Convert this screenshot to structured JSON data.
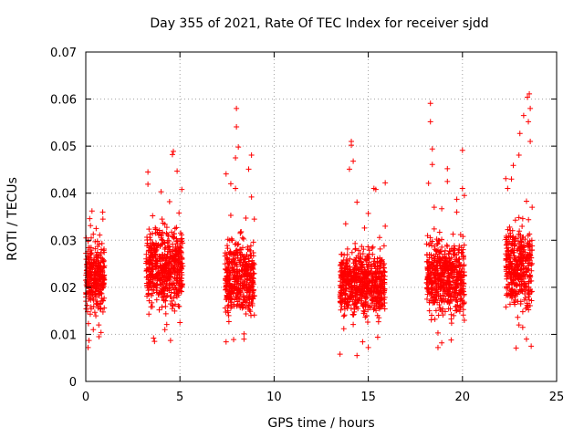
{
  "chart_data": {
    "type": "scatter",
    "title": "Day 355 of 2021, Rate Of TEC Index for receiver sjdd",
    "xlabel": "GPS time / hours",
    "ylabel": "ROTI / TECUs",
    "xlim": [
      0,
      25
    ],
    "ylim": [
      0,
      0.07
    ],
    "xticks": [
      0,
      5,
      10,
      15,
      20,
      25
    ],
    "yticks": [
      0,
      0.01,
      0.02,
      0.03,
      0.04,
      0.05,
      0.06,
      0.07
    ],
    "xtick_labels": [
      "0",
      "5",
      "10",
      "15",
      "20",
      "25"
    ],
    "ytick_labels": [
      "0",
      "0.01",
      "0.02",
      "0.03",
      "0.04",
      "0.05",
      "0.06",
      "0.07"
    ],
    "grid": true,
    "marker": "+",
    "color": "#ff0000",
    "series": [
      {
        "name": "ROTI",
        "points": [
          [
            0.0,
            0.0215
          ],
          [
            0.02,
            0.0305
          ],
          [
            0.05,
            0.0187
          ],
          [
            0.07,
            0.0162
          ],
          [
            0.1,
            0.0254
          ],
          [
            0.12,
            0.0298
          ],
          [
            0.14,
            0.0123
          ],
          [
            0.17,
            0.0087
          ],
          [
            0.19,
            0.0213
          ],
          [
            0.21,
            0.0346
          ],
          [
            0.24,
            0.0272
          ],
          [
            0.26,
            0.0191
          ],
          [
            0.29,
            0.0305
          ],
          [
            0.31,
            0.0228
          ],
          [
            0.33,
            0.0362
          ],
          [
            0.36,
            0.0241
          ],
          [
            0.38,
            0.0176
          ],
          [
            0.4,
            0.0313
          ],
          [
            0.43,
            0.0205
          ],
          [
            0.45,
            0.0259
          ],
          [
            0.48,
            0.0147
          ],
          [
            0.5,
            0.0282
          ],
          [
            0.52,
            0.0192
          ],
          [
            0.55,
            0.0325
          ],
          [
            0.57,
            0.0239
          ],
          [
            0.6,
            0.0164
          ],
          [
            0.62,
            0.0298
          ],
          [
            0.64,
            0.0252
          ],
          [
            0.67,
            0.0187
          ],
          [
            0.69,
            0.012
          ],
          [
            0.71,
            0.0268
          ],
          [
            0.74,
            0.0311
          ],
          [
            0.76,
            0.0204
          ],
          [
            0.79,
            0.0237
          ],
          [
            0.81,
            0.0104
          ],
          [
            0.83,
            0.0171
          ],
          [
            0.86,
            0.0293
          ],
          [
            0.88,
            0.0235
          ],
          [
            0.91,
            0.0345
          ],
          [
            0.93,
            0.0219
          ],
          [
            0.95,
            0.0278
          ],
          [
            0.98,
            0.0156
          ],
          [
            0.12,
            0.0072
          ],
          [
            0.25,
            0.0331
          ],
          [
            0.4,
            0.011
          ],
          [
            0.7,
            0.0095
          ],
          [
            0.9,
            0.036
          ],
          [
            3.2,
            0.0251
          ],
          [
            3.25,
            0.0181
          ],
          [
            3.3,
            0.0419
          ],
          [
            3.35,
            0.0143
          ],
          [
            3.4,
            0.0306
          ],
          [
            3.45,
            0.0227
          ],
          [
            3.5,
            0.0167
          ],
          [
            3.55,
            0.0352
          ],
          [
            3.6,
            0.0205
          ],
          [
            3.65,
            0.0085
          ],
          [
            3.7,
            0.0268
          ],
          [
            3.75,
            0.0194
          ],
          [
            3.8,
            0.0317
          ],
          [
            3.85,
            0.0228
          ],
          [
            3.9,
            0.0152
          ],
          [
            3.95,
            0.0287
          ],
          [
            4.0,
            0.0403
          ],
          [
            4.05,
            0.021
          ],
          [
            4.1,
            0.0262
          ],
          [
            4.15,
            0.0173
          ],
          [
            4.2,
            0.0334
          ],
          [
            4.25,
            0.0246
          ],
          [
            4.3,
            0.0121
          ],
          [
            4.35,
            0.0299
          ],
          [
            4.4,
            0.0218
          ],
          [
            4.45,
            0.0382
          ],
          [
            4.5,
            0.0276
          ],
          [
            4.55,
            0.0199
          ],
          [
            4.6,
            0.0482
          ],
          [
            4.65,
            0.0236
          ],
          [
            4.7,
            0.0314
          ],
          [
            4.75,
            0.0164
          ],
          [
            4.8,
            0.0271
          ],
          [
            4.85,
            0.0447
          ],
          [
            4.9,
            0.0232
          ],
          [
            4.95,
            0.0358
          ],
          [
            5.0,
            0.0193
          ],
          [
            5.05,
            0.0301
          ],
          [
            5.1,
            0.0408
          ],
          [
            5.15,
            0.0245
          ],
          [
            3.3,
            0.0445
          ],
          [
            3.6,
            0.0092
          ],
          [
            4.2,
            0.011
          ],
          [
            4.65,
            0.0489
          ],
          [
            5.0,
            0.0125
          ],
          [
            4.05,
            0.0345
          ],
          [
            4.5,
            0.0087
          ],
          [
            7.4,
            0.025
          ],
          [
            7.45,
            0.0441
          ],
          [
            7.5,
            0.0181
          ],
          [
            7.55,
            0.0302
          ],
          [
            7.6,
            0.0127
          ],
          [
            7.65,
            0.0226
          ],
          [
            7.7,
            0.0353
          ],
          [
            7.75,
            0.0198
          ],
          [
            7.8,
            0.0269
          ],
          [
            7.85,
            0.0089
          ],
          [
            7.9,
            0.0216
          ],
          [
            7.95,
            0.041
          ],
          [
            8.0,
            0.0541
          ],
          [
            8.05,
            0.0184
          ],
          [
            8.1,
            0.0292
          ],
          [
            8.15,
            0.0234
          ],
          [
            8.2,
            0.0157
          ],
          [
            8.25,
            0.0318
          ],
          [
            8.3,
            0.0205
          ],
          [
            8.35,
            0.0264
          ],
          [
            8.4,
            0.0101
          ],
          [
            8.45,
            0.0228
          ],
          [
            8.5,
            0.0347
          ],
          [
            8.55,
            0.0192
          ],
          [
            8.6,
            0.0281
          ],
          [
            8.65,
            0.0451
          ],
          [
            8.7,
            0.0174
          ],
          [
            8.75,
            0.0237
          ],
          [
            8.8,
            0.0392
          ],
          [
            8.85,
            0.0211
          ],
          [
            8.9,
            0.0296
          ],
          [
            8.95,
            0.0141
          ],
          [
            8.0,
            0.058
          ],
          [
            7.95,
            0.0475
          ],
          [
            8.1,
            0.0498
          ],
          [
            7.45,
            0.0084
          ],
          [
            8.4,
            0.009
          ],
          [
            8.8,
            0.0481
          ],
          [
            8.95,
            0.0345
          ],
          [
            7.7,
            0.042
          ],
          [
            13.5,
            0.0058
          ],
          [
            13.6,
            0.027
          ],
          [
            13.7,
            0.021
          ],
          [
            13.8,
            0.0335
          ],
          [
            13.9,
            0.0176
          ],
          [
            14.0,
            0.0451
          ],
          [
            14.05,
            0.0238
          ],
          [
            14.1,
            0.0502
          ],
          [
            14.2,
            0.0121
          ],
          [
            14.3,
            0.0293
          ],
          [
            14.4,
            0.0381
          ],
          [
            14.5,
            0.0202
          ],
          [
            14.6,
            0.0264
          ],
          [
            14.7,
            0.0084
          ],
          [
            14.8,
            0.0326
          ],
          [
            14.9,
            0.0219
          ],
          [
            15.0,
            0.0357
          ],
          [
            15.1,
            0.0158
          ],
          [
            15.2,
            0.0283
          ],
          [
            15.3,
            0.041
          ],
          [
            15.4,
            0.0233
          ],
          [
            15.5,
            0.0094
          ],
          [
            15.6,
            0.0306
          ],
          [
            15.7,
            0.0187
          ],
          [
            15.8,
            0.0247
          ],
          [
            15.9,
            0.0422
          ],
          [
            14.1,
            0.051
          ],
          [
            14.2,
            0.0468
          ],
          [
            15.4,
            0.0408
          ],
          [
            15.0,
            0.0072
          ],
          [
            14.4,
            0.0055
          ],
          [
            15.9,
            0.033
          ],
          [
            13.7,
            0.0112
          ],
          [
            14.8,
            0.0148
          ],
          [
            18.1,
            0.0292
          ],
          [
            18.15,
            0.0196
          ],
          [
            18.2,
            0.0421
          ],
          [
            18.25,
            0.015
          ],
          [
            18.3,
            0.0591
          ],
          [
            18.35,
            0.0248
          ],
          [
            18.4,
            0.0461
          ],
          [
            18.5,
            0.0324
          ],
          [
            18.6,
            0.0209
          ],
          [
            18.7,
            0.0103
          ],
          [
            18.8,
            0.0276
          ],
          [
            18.9,
            0.0367
          ],
          [
            19.0,
            0.0192
          ],
          [
            19.1,
            0.0237
          ],
          [
            19.2,
            0.0452
          ],
          [
            19.3,
            0.026
          ],
          [
            19.4,
            0.0142
          ],
          [
            19.5,
            0.0313
          ],
          [
            19.6,
            0.0206
          ],
          [
            19.7,
            0.0387
          ],
          [
            19.8,
            0.0274
          ],
          [
            19.9,
            0.0173
          ],
          [
            20.0,
            0.0491
          ],
          [
            20.1,
            0.0395
          ],
          [
            18.3,
            0.0552
          ],
          [
            18.4,
            0.0494
          ],
          [
            20.0,
            0.041
          ],
          [
            18.7,
            0.0072
          ],
          [
            19.4,
            0.0088
          ],
          [
            18.9,
            0.0082
          ],
          [
            19.7,
            0.036
          ],
          [
            20.1,
            0.013
          ],
          [
            18.5,
            0.037
          ],
          [
            19.2,
            0.0425
          ],
          [
            22.3,
            0.0431
          ],
          [
            22.35,
            0.0267
          ],
          [
            22.4,
            0.0183
          ],
          [
            22.5,
            0.0328
          ],
          [
            22.6,
            0.0222
          ],
          [
            22.7,
            0.0459
          ],
          [
            22.8,
            0.0293
          ],
          [
            22.85,
            0.0071
          ],
          [
            22.9,
            0.0203
          ],
          [
            23.0,
            0.0481
          ],
          [
            23.05,
            0.0527
          ],
          [
            23.1,
            0.0257
          ],
          [
            23.2,
            0.0346
          ],
          [
            23.25,
            0.0565
          ],
          [
            23.3,
            0.0173
          ],
          [
            23.4,
            0.0383
          ],
          [
            23.45,
            0.0604
          ],
          [
            23.5,
            0.0239
          ],
          [
            23.55,
            0.0611
          ],
          [
            23.6,
            0.051
          ],
          [
            23.65,
            0.0075
          ],
          [
            23.7,
            0.0288
          ],
          [
            23.6,
            0.058
          ],
          [
            23.5,
            0.0552
          ],
          [
            23.4,
            0.009
          ],
          [
            23.0,
            0.012
          ],
          [
            22.6,
            0.043
          ],
          [
            23.7,
            0.037
          ],
          [
            22.4,
            0.041
          ],
          [
            23.2,
            0.0115
          ]
        ]
      }
    ]
  }
}
